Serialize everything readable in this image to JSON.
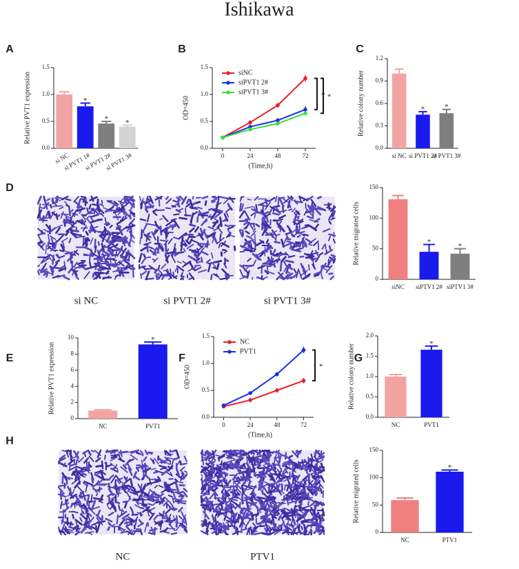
{
  "title": "Ishikawa",
  "micrographs": [
    {
      "panel": "D",
      "captions": [
        "si NC",
        "si PVT1 2#",
        "si PVT1 3#"
      ]
    },
    {
      "panel": "H",
      "captions": [
        "NC",
        "PTV1"
      ]
    }
  ],
  "chart_data": [
    {
      "type": "bar",
      "panel": "A",
      "ylabel": "Relative PVT1 expression",
      "categories": [
        "si NC",
        "si PVT1 1#",
        "si PVT1 2#",
        "si PVT1 3#"
      ],
      "values": [
        1.0,
        0.78,
        0.46,
        0.4
      ],
      "errors": [
        0.05,
        0.06,
        0.04,
        0.03
      ],
      "colors": [
        "#f4a3a3",
        "#1a1aee",
        "#7f7f7f",
        "#d3d3d3"
      ],
      "significance": [
        null,
        "*",
        "*",
        "*"
      ],
      "ylim": [
        0,
        1.5
      ],
      "yticks": [
        {
          "value": 0,
          "label": "0.0"
        },
        {
          "value": 0.5,
          "label": "0.5"
        },
        {
          "value": 1,
          "label": "1.0"
        },
        {
          "value": 1.5,
          "label": "1.5"
        }
      ]
    },
    {
      "type": "line",
      "panel": "B",
      "ylabel": "OD=450",
      "xlabel": "(Time,h)",
      "x": [
        0,
        24,
        48,
        72
      ],
      "series": [
        {
          "name": "siNC",
          "color": "#e8202a",
          "values": [
            0.2,
            0.48,
            0.8,
            1.3
          ],
          "errors": [
            0.03,
            0.04,
            0.04,
            0.06
          ]
        },
        {
          "name": "siPVT1 2#",
          "color": "#1a2ee8",
          "values": [
            0.2,
            0.4,
            0.52,
            0.72
          ],
          "errors": [
            0.03,
            0.03,
            0.04,
            0.06
          ]
        },
        {
          "name": "siPVT1 3#",
          "color": "#38e038",
          "values": [
            0.2,
            0.35,
            0.46,
            0.65
          ],
          "errors": [
            0.02,
            0.03,
            0.03,
            0.04
          ]
        }
      ],
      "annotations": [
        "*",
        "*"
      ],
      "xlim": [
        -9,
        81
      ],
      "xticks": [
        0,
        24,
        48,
        72
      ],
      "ylim": [
        0,
        1.5
      ],
      "yticks": [
        {
          "value": 0,
          "label": "0.0"
        },
        {
          "value": 0.5,
          "label": "0.5"
        },
        {
          "value": 1,
          "label": "1.0"
        },
        {
          "value": 1.5,
          "label": "1.5"
        }
      ]
    },
    {
      "type": "bar",
      "panel": "C",
      "ylabel": "Relative colony number",
      "categories": [
        "si NC",
        "si PVT1 2#",
        "si PVT1 3#"
      ],
      "values": [
        1.0,
        0.45,
        0.47
      ],
      "errors": [
        0.06,
        0.04,
        0.05
      ],
      "colors": [
        "#f4a3a3",
        "#1a1aee",
        "#7f7f7f"
      ],
      "significance": [
        null,
        "*",
        "*"
      ],
      "ylim": [
        0,
        1.2
      ],
      "yticks": [
        {
          "value": 0,
          "label": "0.0"
        },
        {
          "value": 0.3,
          "label": "0.3"
        },
        {
          "value": 0.6,
          "label": "0.6"
        },
        {
          "value": 0.9,
          "label": "0.9"
        },
        {
          "value": 1.2,
          "label": "1.2"
        }
      ]
    },
    {
      "type": "bar",
      "ylabel": "Relative migrated cells",
      "categories": [
        "siNC",
        "siPTV1 2#",
        "siPTV1 3#"
      ],
      "values": [
        131,
        45,
        42
      ],
      "errors": [
        6,
        12,
        8
      ],
      "colors": [
        "#f08080",
        "#1a1aee",
        "#7f7f7f"
      ],
      "significance": [
        null,
        "*",
        "*"
      ],
      "ylim": [
        0,
        150
      ],
      "yticks": [
        0,
        50,
        100,
        150
      ]
    },
    {
      "type": "bar",
      "panel": "E",
      "ylabel": "Relative PVT1 expression",
      "categories": [
        "NC",
        "PVT1"
      ],
      "values": [
        1.0,
        9.2
      ],
      "errors": [
        0.1,
        0.3
      ],
      "colors": [
        "#f4a3a3",
        "#1a1aee"
      ],
      "significance": [
        null,
        "*"
      ],
      "ylim": [
        0,
        10
      ],
      "yticks": [
        0,
        2,
        4,
        6,
        8,
        10
      ]
    },
    {
      "type": "line",
      "panel": "F",
      "ylabel": "OD=450",
      "xlabel": "(Time,h)",
      "x": [
        0,
        24,
        48,
        72
      ],
      "series": [
        {
          "name": "NC",
          "color": "#e8202a",
          "values": [
            0.2,
            0.32,
            0.5,
            0.68
          ],
          "errors": [
            0.03,
            0.04,
            0.04,
            0.05
          ]
        },
        {
          "name": "PVT1",
          "color": "#1a2ee8",
          "values": [
            0.22,
            0.45,
            0.8,
            1.25
          ],
          "errors": [
            0.02,
            0.02,
            0.04,
            0.06
          ]
        }
      ],
      "annotations": [
        "*"
      ],
      "xlim": [
        -9,
        81
      ],
      "xticks": [
        0,
        24,
        48,
        72
      ],
      "ylim": [
        0,
        1.5
      ],
      "yticks": [
        {
          "value": 0,
          "label": "0.0"
        },
        {
          "value": 0.5,
          "label": "0.5"
        },
        {
          "value": 1,
          "label": "1.0"
        },
        {
          "value": 1.5,
          "label": "1.5"
        }
      ]
    },
    {
      "type": "bar",
      "panel": "G",
      "ylabel": "Relative colony number",
      "categories": [
        "NC",
        "PVT1"
      ],
      "values": [
        1.0,
        1.66
      ],
      "errors": [
        0.05,
        0.09
      ],
      "colors": [
        "#f4a3a3",
        "#1a1aee"
      ],
      "significance": [
        null,
        "*"
      ],
      "ylim": [
        0,
        2
      ],
      "yticks": [
        {
          "value": 0,
          "label": "0.0"
        },
        {
          "value": 0.5,
          "label": "0.5"
        },
        {
          "value": 1,
          "label": "1.0"
        },
        {
          "value": 1.5,
          "label": "1.5"
        },
        {
          "value": 2,
          "label": "2.0"
        }
      ]
    },
    {
      "type": "bar",
      "ylabel": "Relative migrated cells",
      "categories": [
        "NC",
        "PTV1"
      ],
      "values": [
        59,
        111
      ],
      "errors": [
        4,
        3
      ],
      "colors": [
        "#f08080",
        "#1a1aee"
      ],
      "significance": [
        null,
        "*"
      ],
      "ylim": [
        0,
        150
      ],
      "yticks": [
        0,
        50,
        100,
        150
      ]
    }
  ]
}
